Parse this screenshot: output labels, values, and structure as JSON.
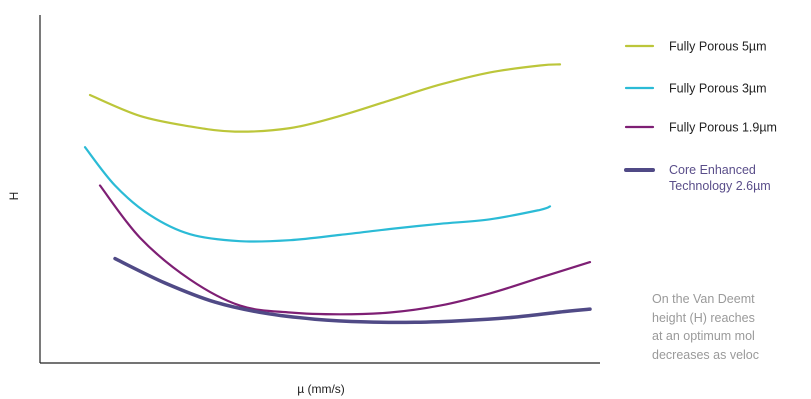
{
  "chart_data": {
    "type": "line",
    "title": "",
    "xlabel": "µ (mm/s)",
    "ylabel": "H",
    "ylim": [
      0,
      100
    ],
    "grid": false,
    "legend_position": "right",
    "series": [
      {
        "name": "Fully Porous 5µm",
        "color": "#bcc63a",
        "x": [
          1.0,
          2.0,
          3.0,
          3.9,
          5.0,
          6.0,
          7.0,
          8.0,
          9.0,
          10.0,
          10.4
        ],
        "y": [
          77,
          71,
          68,
          66.5,
          67.5,
          71,
          75.5,
          80,
          83.5,
          85.5,
          85.8
        ]
      },
      {
        "name": "Fully Porous 3µm",
        "color": "#2bbbd6",
        "x": [
          0.9,
          1.5,
          2.2,
          3.0,
          4.0,
          5.0,
          6.0,
          7.0,
          8.0,
          9.0,
          10.0,
          10.2
        ],
        "y": [
          62,
          51,
          42.5,
          37,
          35,
          35.3,
          36.8,
          38.5,
          40,
          41.3,
          44,
          45
        ]
      },
      {
        "name": "Fully Porous 1.9µm",
        "color": "#7e1f74",
        "x": [
          1.2,
          2.0,
          3.0,
          4.0,
          5.0,
          6.0,
          7.0,
          8.0,
          9.0,
          10.0,
          11.0
        ],
        "y": [
          51,
          36,
          24,
          16.5,
          14.5,
          14,
          14.5,
          16.5,
          20,
          24.5,
          29
        ]
      },
      {
        "name": "Core Enhanced Technology 2.6µm",
        "color": "#504a86",
        "x": [
          1.5,
          2.5,
          3.5,
          4.5,
          5.5,
          6.5,
          7.5,
          8.5,
          9.5,
          10.5,
          11.0
        ],
        "y": [
          30,
          23,
          17.5,
          14.3,
          12.6,
          11.8,
          11.7,
          12.2,
          13.2,
          14.8,
          15.5
        ]
      }
    ]
  },
  "caption": {
    "lines": [
      "On the Van Deemt",
      "height (H) reaches",
      "at an optimum mol",
      "decreases as veloc"
    ]
  }
}
